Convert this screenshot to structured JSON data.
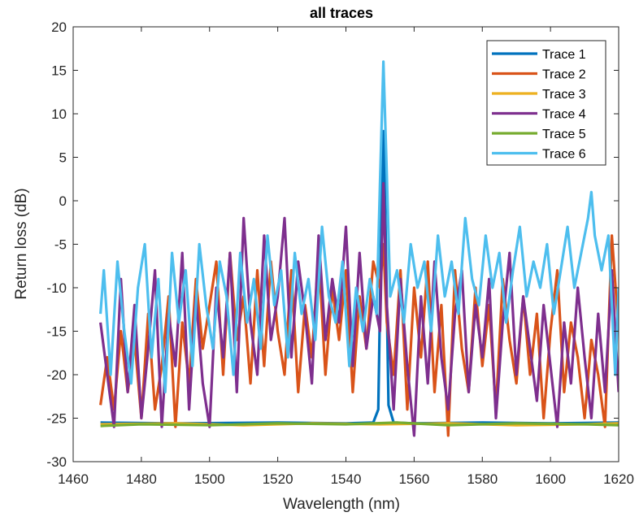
{
  "chart_data": {
    "type": "line",
    "title": "all traces",
    "xlabel": "Wavelength (nm)",
    "ylabel": "Return loss (dB)",
    "xlim": [
      1460,
      1620
    ],
    "ylim": [
      -30,
      20
    ],
    "xticks": [
      1460,
      1480,
      1500,
      1520,
      1540,
      1560,
      1580,
      1600,
      1620
    ],
    "yticks": [
      -30,
      -25,
      -20,
      -15,
      -10,
      -5,
      0,
      5,
      10,
      15,
      20
    ],
    "grid": false,
    "legend_position": "top-right",
    "series": [
      {
        "name": "Trace 1",
        "color": "#0072BD",
        "x": [
          1468,
          1490,
          1520,
          1540,
          1548,
          1549.5,
          1550.5,
          1551,
          1551.5,
          1552.5,
          1554,
          1560,
          1580,
          1600,
          1620
        ],
        "y": [
          -25.5,
          -25.6,
          -25.5,
          -25.6,
          -25.5,
          -24,
          0,
          8,
          0,
          -23.5,
          -25.5,
          -25.6,
          -25.5,
          -25.6,
          -25.5
        ]
      },
      {
        "name": "Trace 2",
        "color": "#D95319",
        "x": [
          1468,
          1470,
          1472,
          1474,
          1476,
          1478,
          1480,
          1482,
          1484,
          1486,
          1488,
          1490,
          1492,
          1494,
          1496,
          1498,
          1500,
          1502,
          1504,
          1506,
          1508,
          1510,
          1512,
          1514,
          1516,
          1518,
          1520,
          1522,
          1524,
          1526,
          1528,
          1530,
          1532,
          1534,
          1536,
          1538,
          1540,
          1542,
          1544,
          1546,
          1548,
          1550,
          1551,
          1552,
          1554,
          1556,
          1558,
          1560,
          1562,
          1564,
          1566,
          1568,
          1570,
          1572,
          1574,
          1576,
          1578,
          1580,
          1582,
          1584,
          1586,
          1588,
          1590,
          1592,
          1594,
          1596,
          1598,
          1600,
          1602,
          1604,
          1606,
          1608,
          1610,
          1612,
          1614,
          1616,
          1618,
          1620
        ],
        "y": [
          -23.5,
          -18,
          -24,
          -15,
          -22,
          -16,
          -25,
          -13,
          -24,
          -19,
          -11,
          -26,
          -14,
          -21,
          -9,
          -17,
          -12,
          -7,
          -20,
          -6,
          -16,
          -11,
          -21,
          -8,
          -19,
          -7,
          -15,
          -20,
          -8,
          -22,
          -12,
          -18,
          -6,
          -20,
          -10,
          -16,
          -8,
          -22,
          -11,
          -17,
          -7,
          -10,
          -5,
          -14,
          -20,
          -8,
          -24,
          -10,
          -18,
          -7,
          -22,
          -12,
          -27,
          -8,
          -17,
          -22,
          -10,
          -19,
          -12,
          -24,
          -9,
          -16,
          -21,
          -11,
          -20,
          -13,
          -25,
          -15,
          -8,
          -22,
          -14,
          -18,
          -25,
          -16,
          -20,
          -26,
          -4,
          -15
        ]
      },
      {
        "name": "Trace 3",
        "color": "#EDB120",
        "x": [
          1468,
          1490,
          1510,
          1530,
          1550,
          1570,
          1590,
          1610,
          1620
        ],
        "y": [
          -25.7,
          -25.6,
          -25.8,
          -25.6,
          -25.7,
          -25.6,
          -25.8,
          -25.7,
          -25.6
        ]
      },
      {
        "name": "Trace 4",
        "color": "#7E2F8E",
        "x": [
          1468,
          1470,
          1472,
          1474,
          1476,
          1478,
          1480,
          1482,
          1484,
          1486,
          1488,
          1490,
          1492,
          1494,
          1496,
          1498,
          1500,
          1502,
          1504,
          1506,
          1508,
          1510,
          1512,
          1514,
          1516,
          1518,
          1520,
          1522,
          1524,
          1526,
          1528,
          1530,
          1532,
          1534,
          1536,
          1538,
          1540,
          1542,
          1544,
          1546,
          1548,
          1550,
          1551,
          1552,
          1554,
          1556,
          1558,
          1560,
          1562,
          1564,
          1566,
          1568,
          1570,
          1572,
          1574,
          1576,
          1578,
          1580,
          1582,
          1584,
          1586,
          1588,
          1590,
          1592,
          1594,
          1596,
          1598,
          1600,
          1602,
          1604,
          1606,
          1608,
          1610,
          1612,
          1614,
          1616,
          1618,
          1620
        ],
        "y": [
          -14,
          -20,
          -26,
          -9,
          -22,
          -12,
          -25,
          -17,
          -8,
          -26,
          -13,
          -19,
          -6,
          -24,
          -11,
          -21,
          -26,
          -10,
          -18,
          -6,
          -22,
          -2,
          -14,
          -20,
          -4,
          -16,
          -11,
          -2,
          -18,
          -7,
          -13,
          -21,
          -4,
          -16,
          -9,
          -14,
          -3,
          -19,
          -6,
          -17,
          -11,
          -15,
          2,
          -12,
          -24,
          -9,
          -19,
          -27,
          -11,
          -21,
          -7,
          -18,
          -24,
          -13,
          -8,
          -22,
          -12,
          -18,
          -9,
          -25,
          -14,
          -6,
          -20,
          -11,
          -17,
          -23,
          -12,
          -19,
          -26,
          -14,
          -21,
          -10,
          -18,
          -25,
          -13,
          -22,
          -8,
          -22
        ]
      },
      {
        "name": "Trace 5",
        "color": "#77AC30",
        "x": [
          1468,
          1480,
          1500,
          1520,
          1540,
          1555,
          1570,
          1590,
          1610,
          1620
        ],
        "y": [
          -25.9,
          -25.7,
          -25.8,
          -25.6,
          -25.7,
          -25.5,
          -25.8,
          -25.6,
          -25.7,
          -25.8
        ]
      },
      {
        "name": "Trace 6",
        "color": "#4DBEEE",
        "x": [
          1468,
          1469,
          1471,
          1473,
          1475,
          1477,
          1479,
          1481,
          1483,
          1485,
          1487,
          1489,
          1491,
          1493,
          1495,
          1497,
          1499,
          1501,
          1503,
          1505,
          1507,
          1509,
          1511,
          1513,
          1515,
          1517,
          1519,
          1521,
          1523,
          1525,
          1527,
          1529,
          1531,
          1533,
          1535,
          1537,
          1539,
          1541,
          1543,
          1545,
          1547,
          1549,
          1550,
          1551,
          1552,
          1553,
          1555,
          1557,
          1559,
          1561,
          1563,
          1565,
          1567,
          1569,
          1571,
          1573,
          1575,
          1577,
          1579,
          1581,
          1583,
          1585,
          1587,
          1589,
          1591,
          1593,
          1595,
          1597,
          1599,
          1601,
          1603,
          1605,
          1607,
          1609,
          1611,
          1612,
          1613,
          1615,
          1617,
          1619,
          1620
        ],
        "y": [
          -13,
          -8,
          -20,
          -7,
          -15,
          -21,
          -10,
          -5,
          -18,
          -9,
          -22,
          -6,
          -14,
          -8,
          -19,
          -5,
          -12,
          -17,
          -7,
          -11,
          -20,
          -6,
          -14,
          -9,
          -17,
          -4,
          -12,
          -8,
          -18,
          -6,
          -13,
          -9,
          -16,
          -3,
          -11,
          -14,
          -7,
          -19,
          -10,
          -15,
          -9,
          -13,
          2,
          16,
          3,
          -11,
          -8,
          -14,
          -5,
          -10,
          -7,
          -15,
          -4,
          -11,
          -7,
          -13,
          -2,
          -9,
          -12,
          -4,
          -10,
          -6,
          -14,
          -8,
          -3,
          -11,
          -7,
          -10,
          -5,
          -13,
          -8,
          -3,
          -10,
          -6,
          -2,
          1,
          -4,
          -8,
          -4,
          -20,
          -10
        ]
      }
    ]
  }
}
